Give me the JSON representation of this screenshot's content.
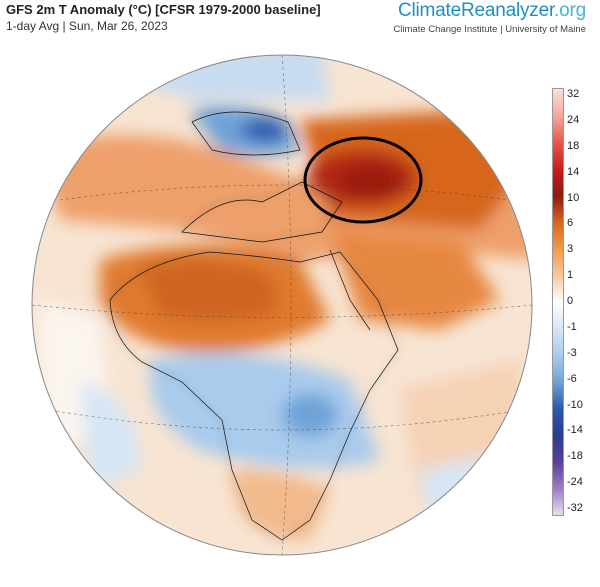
{
  "header": {
    "title": "GFS 2m T Anomaly (°C) [CFSR 1979-2000 baseline]",
    "subtitle": "1-day Avg | Sun, Mar 26, 2023"
  },
  "brand": {
    "name_main": "ClimateReanalyzer",
    "name_suffix": ".org",
    "affiliation": "Climate Change Institute | University of Maine"
  },
  "legend": {
    "unit": "°C",
    "ticks": [
      "32",
      "24",
      "18",
      "14",
      "10",
      "6",
      "3",
      "1",
      "0",
      "-1",
      "-3",
      "-6",
      "-10",
      "-14",
      "-18",
      "-24",
      "-32"
    ],
    "colors": [
      "#fde0dc",
      "#f4a79d",
      "#e8564a",
      "#c81e1e",
      "#8b1a0f",
      "#d9641f",
      "#f09a4b",
      "#f8c79c",
      "#ffffff",
      "#d6e6f5",
      "#a9cbec",
      "#6ea3d8",
      "#2b59b0",
      "#2a3c8f",
      "#5c3d9b",
      "#9c7cc4",
      "#e8dcef"
    ]
  },
  "map": {
    "projection": "orthographic",
    "annotation": "circled-hotspot-western-russia",
    "colors": {
      "warm_strong": "#8b1a0f",
      "warm": "#e27731",
      "mild_warm": "#f4b886",
      "neutral": "#fbf5ef",
      "cool": "#a9cbec",
      "cold": "#2b59b0"
    }
  }
}
